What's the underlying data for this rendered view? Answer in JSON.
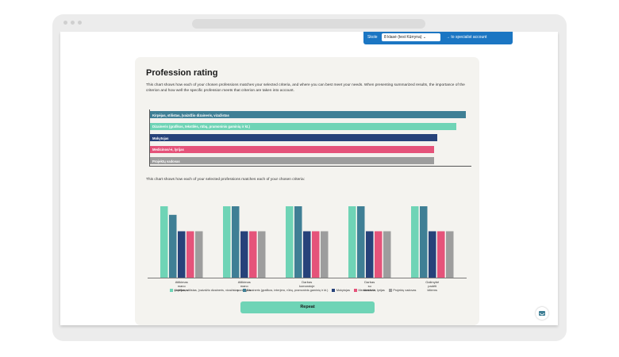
{
  "header": {
    "select_label": "Skole",
    "select_value": "8 klasė (test Kūrryna)",
    "account_link": "to specialist account"
  },
  "card": {
    "title": "Profession rating",
    "description": "This chart shows how each of your chosen professions matches your selected criteria, and where you can best meet your needs. When presenting summarized results, the importance of the criterion and how well the specific profession meets that criterion are taken into account.",
    "sub_description": "This chart shows how each of your selected professions matches each of your chosen criteria:",
    "repeat_label": "Repeat"
  },
  "colors": {
    "teal": "#3f7f95",
    "mint": "#6fd4b6",
    "navy": "#27427a",
    "pink": "#e5537a",
    "gray": "#9d9d9d"
  },
  "chart_data": [
    {
      "type": "bar",
      "orientation": "horizontal",
      "categories": [
        "Kirpėjas, stilistas, (vaizdžio dizaineris, vizažistas",
        "Dizaineris (grafikos, tekstilės, rūbų, pramoninis gaminių ir kt.)",
        "Mokytojas",
        "Medicinos/-ė, lyrijas",
        "Projektų vadovas"
      ],
      "values": [
        100,
        97,
        91,
        90,
        90
      ],
      "xlim": [
        0,
        100
      ]
    },
    {
      "type": "bar",
      "categories": [
        [
          "Atlikimas",
          "mano",
          "polėkmas"
        ],
        [
          "Atlikimas",
          "mano",
          "pomėgius"
        ],
        [
          "Darbas",
          "komandoje"
        ],
        [
          "Darbas",
          "su",
          "skaičiais"
        ],
        [
          "Galimybė",
          "padėti",
          "kitiems"
        ]
      ],
      "series": [
        {
          "name": "Kirpėjas, stilistas, (vaizdžio dizaineris, vizažistas",
          "values": [
            10,
            10,
            10,
            10,
            10
          ]
        },
        {
          "name": "Dizaineris (grafikos, interjero, rūbų, pramoninis gaminių ir kt.)",
          "values": [
            8.8,
            10,
            10,
            10,
            10
          ]
        },
        {
          "name": "Mokytojas",
          "values": [
            6.5,
            6.5,
            6.5,
            6.5,
            6.5
          ]
        },
        {
          "name": "Medicinos/-ė, lyrijas",
          "values": [
            6.5,
            6.5,
            6.5,
            6.5,
            6.5
          ]
        },
        {
          "name": "Projektų vadovas",
          "values": [
            6.5,
            6.5,
            6.5,
            6.5,
            6.5
          ]
        }
      ],
      "series_values_note": "",
      "ylim": [
        0,
        10
      ]
    }
  ]
}
